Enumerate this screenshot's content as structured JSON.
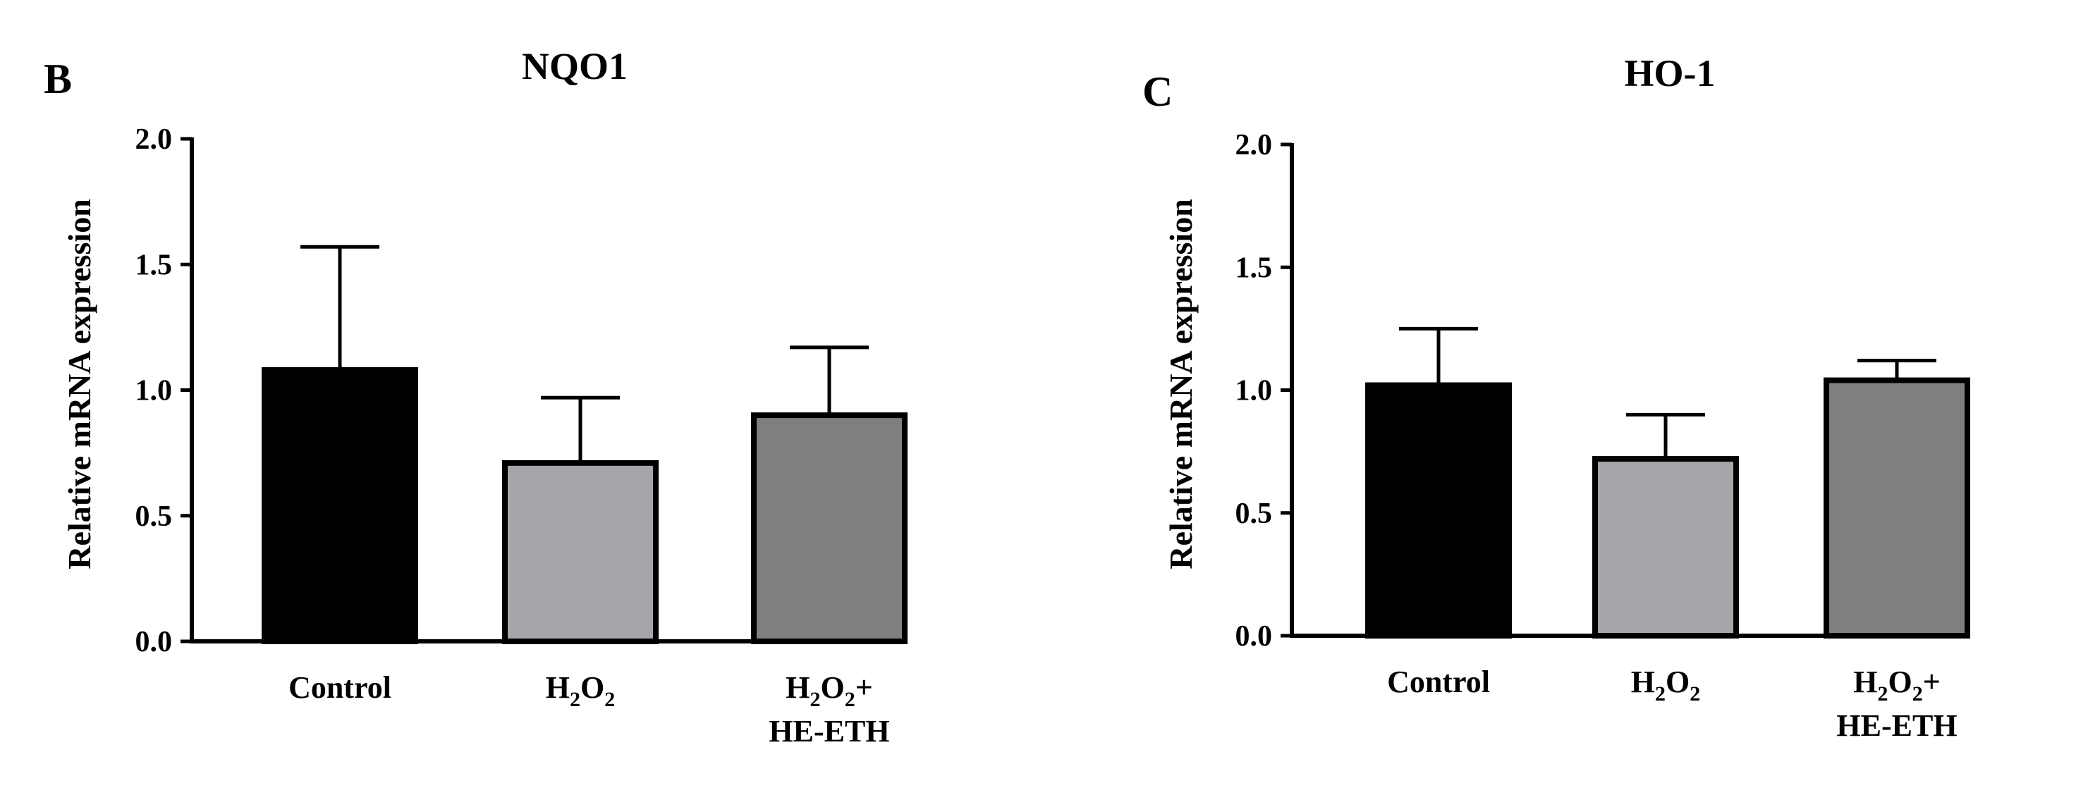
{
  "chart_data": [
    {
      "panel": "B",
      "type": "bar",
      "title": "NQO1",
      "ylabel": "Relative mRNA expression",
      "xlabel": "",
      "ylim": [
        0,
        2.0
      ],
      "yticks": [
        "0.0",
        "0.5",
        "1.0",
        "1.5",
        "2.0"
      ],
      "categories": [
        {
          "line1": "Control",
          "line1_sub": "",
          "line1_tail": "",
          "line2": ""
        },
        {
          "line1": "H",
          "line1_sub": "2",
          "line1_tail": "O2",
          "line2": ""
        },
        {
          "line1": "H",
          "line1_sub": "2",
          "line1_tail": "O2+",
          "line2": "HE-ETH"
        }
      ],
      "category_names": [
        "Control",
        "H2O2",
        "H2O2+HE-ETH"
      ],
      "values": [
        1.08,
        0.71,
        0.9
      ],
      "error_upper": [
        0.49,
        0.26,
        0.27
      ],
      "colors": [
        "#000000",
        "#a7a5aa",
        "#7f7f7f"
      ]
    },
    {
      "panel": "C",
      "type": "bar",
      "title": "HO-1",
      "ylabel": "Relative mRNA expression",
      "xlabel": "",
      "ylim": [
        0,
        2.0
      ],
      "yticks": [
        "0.0",
        "0.5",
        "1.0",
        "1.5",
        "2.0"
      ],
      "categories": [
        {
          "line1": "Control",
          "line1_sub": "",
          "line1_tail": "",
          "line2": ""
        },
        {
          "line1": "H",
          "line1_sub": "2",
          "line1_tail": "O2",
          "line2": ""
        },
        {
          "line1": "H",
          "line1_sub": "2",
          "line1_tail": "O2+",
          "line2": "HE-ETH"
        }
      ],
      "category_names": [
        "Control",
        "H2O2",
        "H2O2+HE-ETH"
      ],
      "values": [
        1.02,
        0.72,
        1.04
      ],
      "error_upper": [
        0.23,
        0.18,
        0.08
      ],
      "colors": [
        "#000000",
        "#a7a5aa",
        "#7f7f7f"
      ]
    }
  ]
}
